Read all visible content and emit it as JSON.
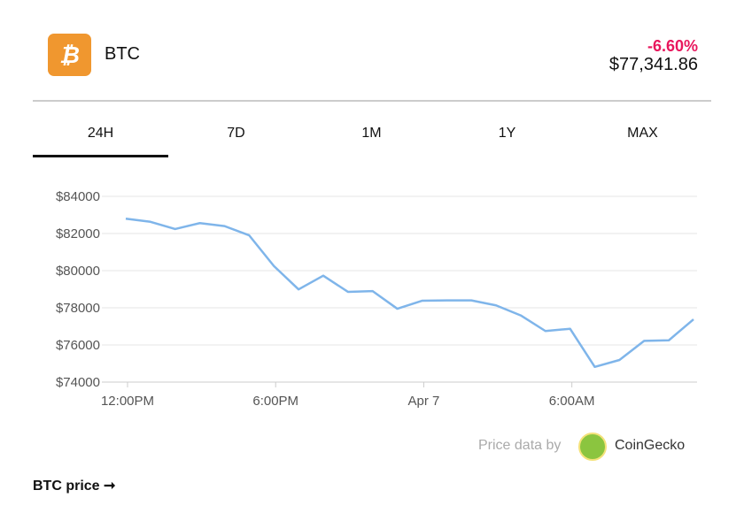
{
  "header": {
    "logo_letter": "₿",
    "symbol": "BTC",
    "change": "-6.60%",
    "price": "$77,341.86"
  },
  "tabs": [
    {
      "label": "24H"
    },
    {
      "label": "7D"
    },
    {
      "label": "1M"
    },
    {
      "label": "1Y"
    },
    {
      "label": "MAX"
    }
  ],
  "active_tab": "24H",
  "footer": {
    "credit": "Price data by",
    "provider": "CoinGecko",
    "link": "BTC price ➞"
  },
  "colors": {
    "line": "#7fb5ea",
    "change": "#e8175d",
    "grid": "#e6e6e6"
  },
  "chart_data": {
    "type": "line",
    "x": [
      0,
      1,
      2,
      3,
      4,
      5,
      6,
      7,
      8,
      9,
      10,
      11,
      12,
      13,
      14,
      15,
      16,
      17,
      18,
      19,
      20,
      21,
      22,
      23
    ],
    "values": [
      82800,
      82630,
      82240,
      82560,
      82400,
      81900,
      80250,
      78990,
      79730,
      78860,
      78900,
      77950,
      78380,
      78400,
      78400,
      78130,
      77590,
      76750,
      76870,
      74820,
      75190,
      76220,
      76250,
      77380
    ],
    "ylim": [
      74000,
      84000
    ],
    "yticks": [
      74000,
      76000,
      78000,
      80000,
      82000,
      84000
    ],
    "ytick_labels": [
      "$74000",
      "$76000",
      "$78000",
      "$80000",
      "$82000",
      "$84000"
    ],
    "xticks": [
      0,
      6,
      12,
      18
    ],
    "xtick_labels": [
      "12:00PM",
      "6:00PM",
      "Apr 7",
      "6:00AM"
    ],
    "grid": true,
    "title": "",
    "xlabel": "",
    "ylabel": ""
  }
}
